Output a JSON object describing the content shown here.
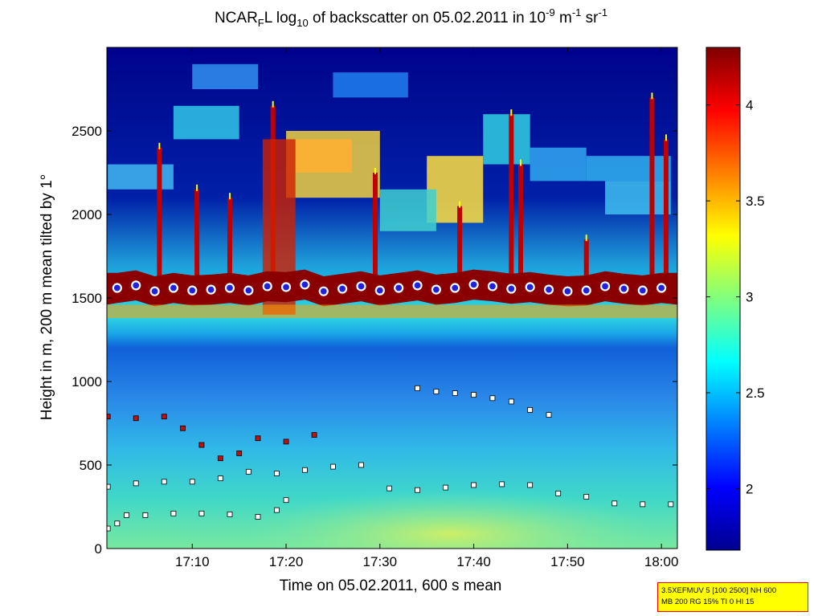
{
  "title": {
    "pre": "NCAR",
    "sub1": "F",
    "mid": "L log",
    "sub2": "10",
    "post": " of backscatter on 05.02.2011 in 10",
    "sup1": "-9",
    "unit1": " m",
    "sup2": "-1",
    "unit2": " sr",
    "sup3": "-1"
  },
  "info_box": {
    "line1": "3.5XEFMUV 5 [100 2500] NH 600",
    "line2": "MB 200 RG 15% TI 0 HI 15"
  },
  "chart_data": {
    "type": "heatmap",
    "title": "NCAR_F L log10 of backscatter on 05.02.2011 in 10^-9 m^-1 sr^-1",
    "xlabel": "Time on 05.02.2011, 600 s mean",
    "ylabel": "Height in m, 200 m mean tilted by 1°",
    "x_ticks": [
      "17:10",
      "17:20",
      "17:30",
      "17:40",
      "17:50",
      "18:00"
    ],
    "x_tick_minutes": [
      1030,
      1040,
      1050,
      1060,
      1070,
      1080
    ],
    "xlim_minutes": [
      1020.9,
      1081.7
    ],
    "y_ticks": [
      0,
      500,
      1000,
      1500,
      2000,
      2500
    ],
    "ylim": [
      0,
      3000
    ],
    "colorbar": {
      "ticks": [
        "2",
        "2.5",
        "3",
        "3.5",
        "4"
      ],
      "tick_values": [
        2,
        2.5,
        3,
        3.5,
        4
      ],
      "range": [
        1.68,
        4.3
      ],
      "colormap": "jet"
    },
    "layers": {
      "top_cloud_base_m": 1500,
      "boundary_layer_top_m": 1560,
      "upper_cloud_band_m": [
        2100,
        2600
      ]
    },
    "marker_series": [
      {
        "name": "lowest layer (white squares)",
        "color": "#ffffff",
        "x_minutes": [
          1021,
          1022,
          1023,
          1025,
          1028,
          1031,
          1034,
          1037,
          1039,
          1040
        ],
        "y": [
          120,
          150,
          200,
          200,
          210,
          210,
          205,
          190,
          230,
          290
        ]
      },
      {
        "name": "second layer (white squares)",
        "color": "#ffffff",
        "x_minutes": [
          1021,
          1024,
          1027,
          1030,
          1033,
          1036,
          1039,
          1042,
          1045,
          1048,
          1051,
          1054,
          1057,
          1060,
          1063,
          1066,
          1069,
          1072,
          1075,
          1078,
          1081
        ],
        "y": [
          370,
          390,
          400,
          400,
          420,
          460,
          450,
          470,
          490,
          500,
          360,
          350,
          365,
          380,
          385,
          380,
          330,
          310,
          270,
          265,
          265
        ]
      },
      {
        "name": "aerosol layer (red squares)",
        "color": "#c01010",
        "x_minutes": [
          1021,
          1024,
          1027,
          1029,
          1031,
          1033,
          1035,
          1037,
          1040,
          1043
        ],
        "y": [
          790,
          780,
          790,
          720,
          620,
          540,
          570,
          660,
          640,
          680
        ]
      },
      {
        "name": "elevated layer (white squares)",
        "color": "#ffffff",
        "x_minutes": [
          1054,
          1056,
          1058,
          1060,
          1062,
          1064,
          1066,
          1068
        ],
        "y": [
          960,
          940,
          930,
          920,
          900,
          880,
          830,
          800
        ]
      }
    ],
    "cloud_base_markers": {
      "name": "cloud base (white circles, blue center)",
      "x_minutes": [
        1022,
        1024,
        1026,
        1028,
        1030,
        1032,
        1034,
        1036,
        1038,
        1040,
        1042,
        1044,
        1046,
        1048,
        1050,
        1052,
        1054,
        1056,
        1058,
        1060,
        1062,
        1064,
        1066,
        1068,
        1070,
        1072,
        1074,
        1076,
        1078,
        1080
      ],
      "y": [
        1560,
        1575,
        1540,
        1560,
        1545,
        1550,
        1560,
        1545,
        1570,
        1565,
        1580,
        1540,
        1555,
        1570,
        1545,
        1560,
        1575,
        1550,
        1560,
        1580,
        1570,
        1555,
        1565,
        1550,
        1540,
        1545,
        1570,
        1555,
        1545,
        1560
      ]
    }
  }
}
